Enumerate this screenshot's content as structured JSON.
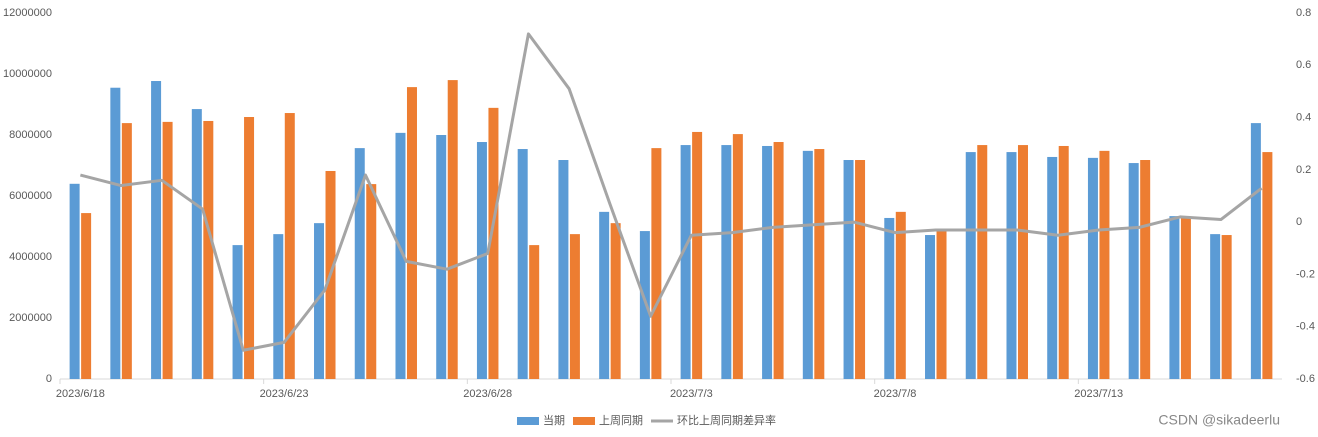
{
  "chart_data": {
    "type": "bar-line",
    "categories": [
      "2023/6/18",
      null,
      null,
      null,
      null,
      "2023/6/23",
      null,
      null,
      null,
      null,
      "2023/6/28",
      null,
      null,
      null,
      null,
      "2023/7/3",
      null,
      null,
      null,
      null,
      "2023/7/8",
      null,
      null,
      null,
      null,
      "2023/7/13",
      null,
      null,
      null,
      null
    ],
    "series": [
      {
        "name": "当期",
        "color": "#5b9bd5",
        "type": "bar",
        "values": [
          6400000,
          9550000,
          9770000,
          8850000,
          4390000,
          4750000,
          5110000,
          7570000,
          8070000,
          8000000,
          7770000,
          7540000,
          7180000,
          5480000,
          4850000,
          7670000,
          7670000,
          7640000,
          7480000,
          7180000,
          5280000,
          4720000,
          7440000,
          7440000,
          7280000,
          7250000,
          7080000,
          5340000,
          4750000,
          8390000
        ]
      },
      {
        "name": "上周同期",
        "color": "#ed7d31",
        "type": "bar",
        "values": [
          5440000,
          8390000,
          8430000,
          8460000,
          8590000,
          8720000,
          6820000,
          6390000,
          9570000,
          9800000,
          8890000,
          4390000,
          4750000,
          5110000,
          7570000,
          8100000,
          8030000,
          7770000,
          7540000,
          7180000,
          5480000,
          4850000,
          7670000,
          7670000,
          7640000,
          7480000,
          7180000,
          5280000,
          4720000,
          7440000
        ]
      },
      {
        "name": "环比上周同期差异率",
        "color": "#a5a5a5",
        "type": "line",
        "axis": "y2",
        "values": [
          0.18,
          0.14,
          0.16,
          0.05,
          -0.49,
          -0.46,
          -0.26,
          0.18,
          -0.15,
          -0.18,
          -0.12,
          0.72,
          0.51,
          0.07,
          -0.36,
          -0.05,
          -0.04,
          -0.02,
          -0.01,
          0.0,
          -0.04,
          -0.03,
          -0.03,
          -0.03,
          -0.05,
          -0.03,
          -0.02,
          0.02,
          0.01,
          0.13
        ]
      }
    ],
    "ylim": [
      0,
      12000000
    ],
    "yticks": [
      0,
      2000000,
      4000000,
      6000000,
      8000000,
      10000000,
      12000000
    ],
    "y2lim": [
      -0.6,
      0.8
    ],
    "y2ticks": [
      -0.6,
      -0.4,
      -0.2,
      0,
      0.2,
      0.4,
      0.6,
      0.8
    ],
    "grid": false,
    "legend": "bottom",
    "watermark": "CSDN @sikadeerlu"
  }
}
